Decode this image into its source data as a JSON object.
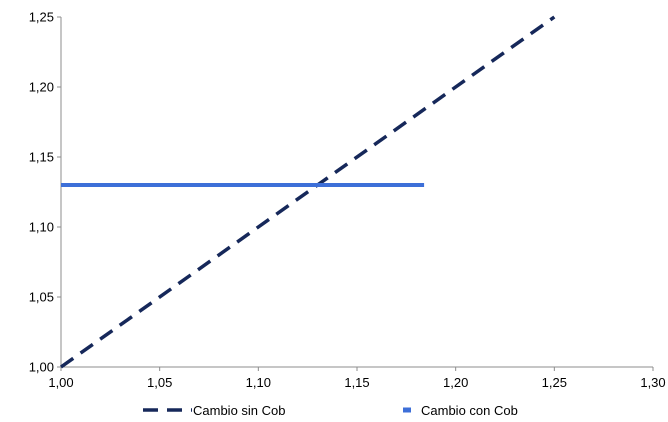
{
  "chart_data": {
    "type": "line",
    "title": "",
    "xlabel": "",
    "ylabel": "",
    "xlim": [
      1.0,
      1.3
    ],
    "ylim": [
      1.0,
      1.25
    ],
    "x_ticks": [
      1.0,
      1.05,
      1.1,
      1.15,
      1.2,
      1.25,
      1.3
    ],
    "y_ticks": [
      1.0,
      1.05,
      1.1,
      1.15,
      1.2,
      1.25
    ],
    "x_tick_labels": [
      "1,00",
      "1,05",
      "1,10",
      "1,15",
      "1,20",
      "1,25",
      "1,30"
    ],
    "y_tick_labels": [
      "1,00",
      "1,05",
      "1,10",
      "1,15",
      "1,20",
      "1,25"
    ],
    "grid": false,
    "legend_position": "bottom",
    "series": [
      {
        "name": "Cambio sin Cob",
        "color": "#16285a",
        "line_style": "dashed",
        "x": [
          1.0,
          1.25
        ],
        "y": [
          1.0,
          1.25
        ]
      },
      {
        "name": "Cambio con Cob",
        "color": "#3d6fd8",
        "line_style": "solid",
        "x": [
          1.0,
          1.184
        ],
        "y": [
          1.13,
          1.13
        ]
      }
    ]
  }
}
